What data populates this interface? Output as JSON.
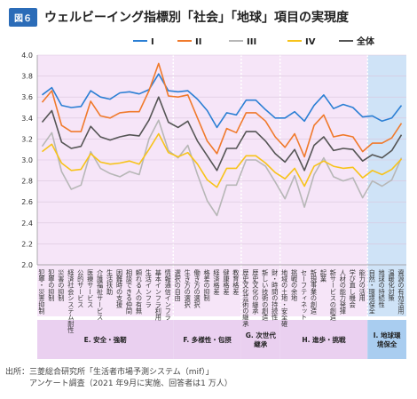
{
  "figure_badge": "図６",
  "title": "ウェルビーイング指標別「社会」「地球」項目の実現度",
  "source_lines": [
    "出所：三菱総合研究所「生活者市場予測システム（mif）」",
    "　　　アンケート調査（2021 年9月に実施、回答者は1 万人）"
  ],
  "colors": {
    "I": "#2b7fd4",
    "II": "#f07a2c",
    "III": "#b7b7b7",
    "IV": "#f7c31a",
    "total": "#555555",
    "band_pink": "#f6e5f8",
    "band_blue": "#cfe3f7",
    "band_header_pink": "#ead0f0",
    "band_header_blue": "#a9cdf0"
  },
  "chart_data": {
    "type": "line",
    "ylim": [
      2.0,
      4.0
    ],
    "yticks": [
      "2.0",
      "2.2",
      "2.4",
      "2.6",
      "2.8",
      "3.0",
      "3.2",
      "3.4",
      "3.6",
      "3.8",
      "4.0"
    ],
    "legend_position": "top",
    "categories": [
      "犯罪・災害抑制",
      "犯罪の抑制",
      "災害の抑制",
      "経済社会システム耐性",
      "公的サービス",
      "医療サービス",
      "介護福祉サービス",
      "生活扶助",
      "困難時の支援",
      "相談できる仲間",
      "頼れる人の有無",
      "生活インフラ",
      "基本インフラ利用",
      "情報通信インフラ",
      "選択の自由",
      "生き方の選択",
      "働き方の選択",
      "格差の抑制",
      "経済格差",
      "健康格差",
      "教育格差",
      "歴史文化芸術の継承",
      "歴史文化の継承",
      "新しい技術の創造",
      "財・時間の持続性",
      "地域の土地・安全確",
      "挑戦の余地",
      "セーフティネット",
      "新規事業の創造",
      "起業",
      "新サービスの創造",
      "人材の能力発揮",
      "学び直し機会",
      "能力の活用",
      "自然・環境保全",
      "地球の持続性",
      "温暖化対策",
      "資源の有効活用"
    ],
    "series": [
      {
        "name": "I",
        "values": [
          3.62,
          3.69,
          3.52,
          3.5,
          3.51,
          3.66,
          3.6,
          3.58,
          3.64,
          3.65,
          3.63,
          3.67,
          3.82,
          3.66,
          3.65,
          3.66,
          3.58,
          3.47,
          3.31,
          3.45,
          3.43,
          3.57,
          3.57,
          3.48,
          3.4,
          3.4,
          3.46,
          3.37,
          3.52,
          3.62,
          3.49,
          3.53,
          3.5,
          3.41,
          3.42,
          3.37,
          3.4,
          3.52
        ]
      },
      {
        "name": "II",
        "values": [
          3.55,
          3.66,
          3.33,
          3.27,
          3.27,
          3.56,
          3.42,
          3.4,
          3.45,
          3.46,
          3.46,
          3.66,
          3.92,
          3.61,
          3.6,
          3.62,
          3.4,
          3.18,
          3.06,
          3.3,
          3.26,
          3.45,
          3.45,
          3.37,
          3.22,
          3.12,
          3.25,
          3.03,
          3.33,
          3.43,
          3.22,
          3.24,
          3.22,
          3.08,
          3.16,
          3.16,
          3.21,
          3.35
        ]
      },
      {
        "name": "III",
        "values": [
          3.13,
          3.26,
          2.89,
          2.72,
          2.76,
          3.08,
          2.92,
          2.87,
          2.84,
          2.89,
          2.86,
          3.2,
          3.38,
          3.09,
          3.02,
          3.14,
          2.86,
          2.61,
          2.47,
          2.76,
          2.76,
          3.0,
          3.0,
          2.94,
          2.79,
          2.63,
          2.85,
          2.55,
          2.86,
          3.02,
          2.84,
          2.8,
          2.83,
          2.64,
          2.8,
          2.75,
          2.81,
          3.02
        ]
      },
      {
        "name": "IV",
        "values": [
          3.08,
          3.15,
          2.97,
          2.9,
          2.91,
          3.06,
          2.98,
          2.96,
          2.97,
          2.99,
          2.96,
          3.1,
          3.25,
          3.07,
          3.03,
          3.07,
          2.96,
          2.81,
          2.74,
          2.92,
          2.92,
          3.04,
          3.04,
          2.97,
          2.88,
          2.82,
          2.92,
          2.75,
          2.94,
          2.99,
          2.94,
          2.92,
          2.93,
          2.83,
          2.9,
          2.86,
          2.91,
          3.01
        ]
      },
      {
        "name": "全体",
        "values": [
          3.36,
          3.47,
          3.17,
          3.11,
          3.13,
          3.32,
          3.22,
          3.19,
          3.22,
          3.24,
          3.23,
          3.38,
          3.6,
          3.36,
          3.31,
          3.37,
          3.18,
          3.04,
          2.9,
          3.11,
          3.11,
          3.27,
          3.27,
          3.18,
          3.06,
          2.98,
          3.1,
          2.9,
          3.14,
          3.22,
          3.09,
          3.11,
          3.1,
          2.99,
          3.05,
          3.02,
          3.09,
          3.24
        ]
      }
    ],
    "groups": [
      {
        "label": "E. 安全・強靭",
        "start": 0,
        "end": 13,
        "band": "pink"
      },
      {
        "label": "F. 多様性・包摂",
        "start": 14,
        "end": 20,
        "band": "pink"
      },
      {
        "label": "G. 次世代継承",
        "start": 21,
        "end": 24,
        "band": "pink"
      },
      {
        "label": "H. 進歩・挑戦",
        "start": 25,
        "end": 33,
        "band": "pink"
      },
      {
        "label": "I. 地球環境保全",
        "start": 34,
        "end": 37,
        "band": "blue"
      }
    ]
  }
}
